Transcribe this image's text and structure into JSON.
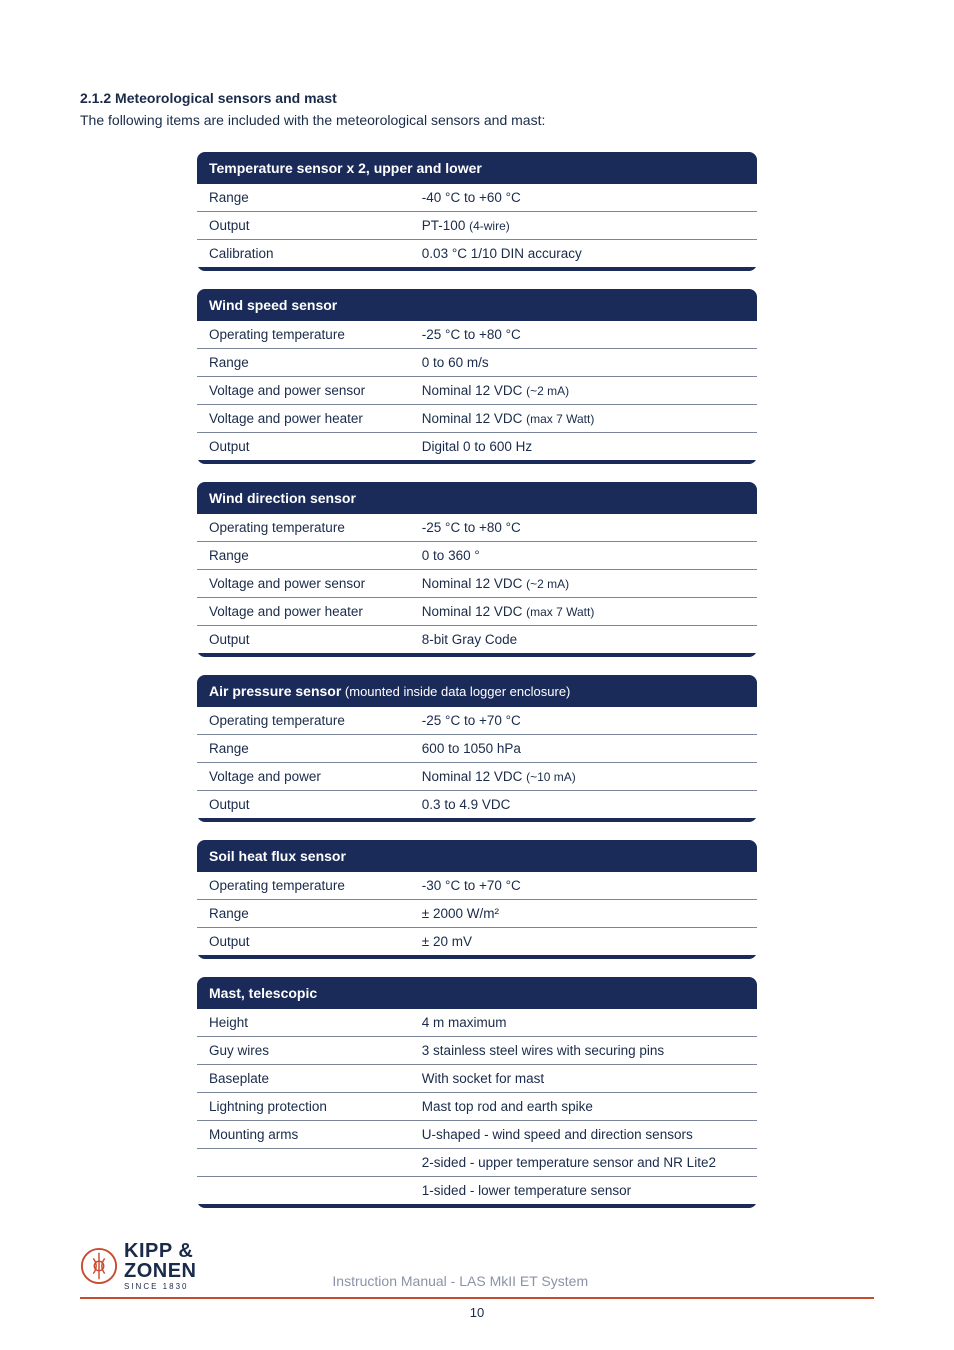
{
  "section": {
    "number": "2.1.2",
    "title": "Meteorological sensors and mast",
    "intro": "The following items are included with the meteorological sensors and mast:"
  },
  "tables": [
    {
      "header": "Temperature sensor x 2, upper and lower",
      "header_sub": "",
      "rows": [
        {
          "label": "Range",
          "value": "-40 °C to +60 °C"
        },
        {
          "label": "Output",
          "value": "PT-100 (4-wire)",
          "value_sub": "(4-wire)"
        },
        {
          "label": "Calibration",
          "value": "0.03 °C 1/10 DIN accuracy"
        }
      ]
    },
    {
      "header": "Wind speed sensor",
      "header_sub": "",
      "rows": [
        {
          "label": "Operating temperature",
          "value": "-25 °C to +80 °C"
        },
        {
          "label": "Range",
          "value": "0 to 60 m/s"
        },
        {
          "label": "Voltage and power sensor",
          "value": "Nominal 12 VDC (~2 mA)",
          "value_sub": "(~2 mA)"
        },
        {
          "label": "Voltage and power heater",
          "value": "Nominal 12 VDC (max 7 Watt)",
          "value_sub": "(max 7 Watt)"
        },
        {
          "label": "Output",
          "value": "Digital 0 to 600 Hz"
        }
      ]
    },
    {
      "header": "Wind direction sensor",
      "header_sub": "",
      "rows": [
        {
          "label": "Operating temperature",
          "value": "-25 °C to +80 °C"
        },
        {
          "label": "Range",
          "value": "0 to 360 °"
        },
        {
          "label": "Voltage and power sensor",
          "value": "Nominal 12 VDC (~2 mA)",
          "value_sub": "(~2 mA)"
        },
        {
          "label": "Voltage and power heater",
          "value": "Nominal 12 VDC (max 7 Watt)",
          "value_sub": "(max 7 Watt)"
        },
        {
          "label": "Output",
          "value": "8-bit Gray Code"
        }
      ]
    },
    {
      "header": "Air pressure sensor",
      "header_sub": "(mounted inside data logger enclosure)",
      "rows": [
        {
          "label": "Operating temperature",
          "value": "-25 °C to +70 °C"
        },
        {
          "label": "Range",
          "value": "600 to 1050 hPa"
        },
        {
          "label": "Voltage and power",
          "value": "Nominal 12 VDC (~10 mA)",
          "value_sub": "(~10 mA)"
        },
        {
          "label": "Output",
          "value": "0.3 to 4.9 VDC"
        }
      ]
    },
    {
      "header": "Soil heat flux sensor",
      "header_sub": "",
      "rows": [
        {
          "label": "Operating temperature",
          "value": "-30 °C to +70 °C"
        },
        {
          "label": "Range",
          "value": "± 2000 W/m²"
        },
        {
          "label": "Output",
          "value": "± 20 mV"
        }
      ]
    },
    {
      "header": "Mast, telescopic",
      "header_sub": "",
      "rows": [
        {
          "label": "Height",
          "value": "4 m maximum"
        },
        {
          "label": "Guy wires",
          "value": "3 stainless steel wires with securing pins"
        },
        {
          "label": "Baseplate",
          "value": "With socket for mast"
        },
        {
          "label": "Lightning protection",
          "value": "Mast top rod and earth spike"
        },
        {
          "label": "Mounting arms",
          "value": "U-shaped - wind speed and direction sensors"
        },
        {
          "label": "",
          "value": "2-sided - upper temperature sensor and NR Lite2"
        },
        {
          "label": "",
          "value": "1-sided - lower temperature sensor"
        }
      ]
    }
  ],
  "footer": {
    "logo_line1": "KIPP &",
    "logo_line2": "ZONEN",
    "logo_line3": "SINCE 1830",
    "manual_title": "Instruction Manual - LAS MkII ET System",
    "page_num": "10"
  },
  "colors": {
    "header_bg": "#1a2b5a",
    "header_text": "#ffffff",
    "body_text": "#1a2b4a",
    "row_border": "#7a8599",
    "footer_rule": "#c84b2f",
    "muted": "#8a94a6"
  }
}
